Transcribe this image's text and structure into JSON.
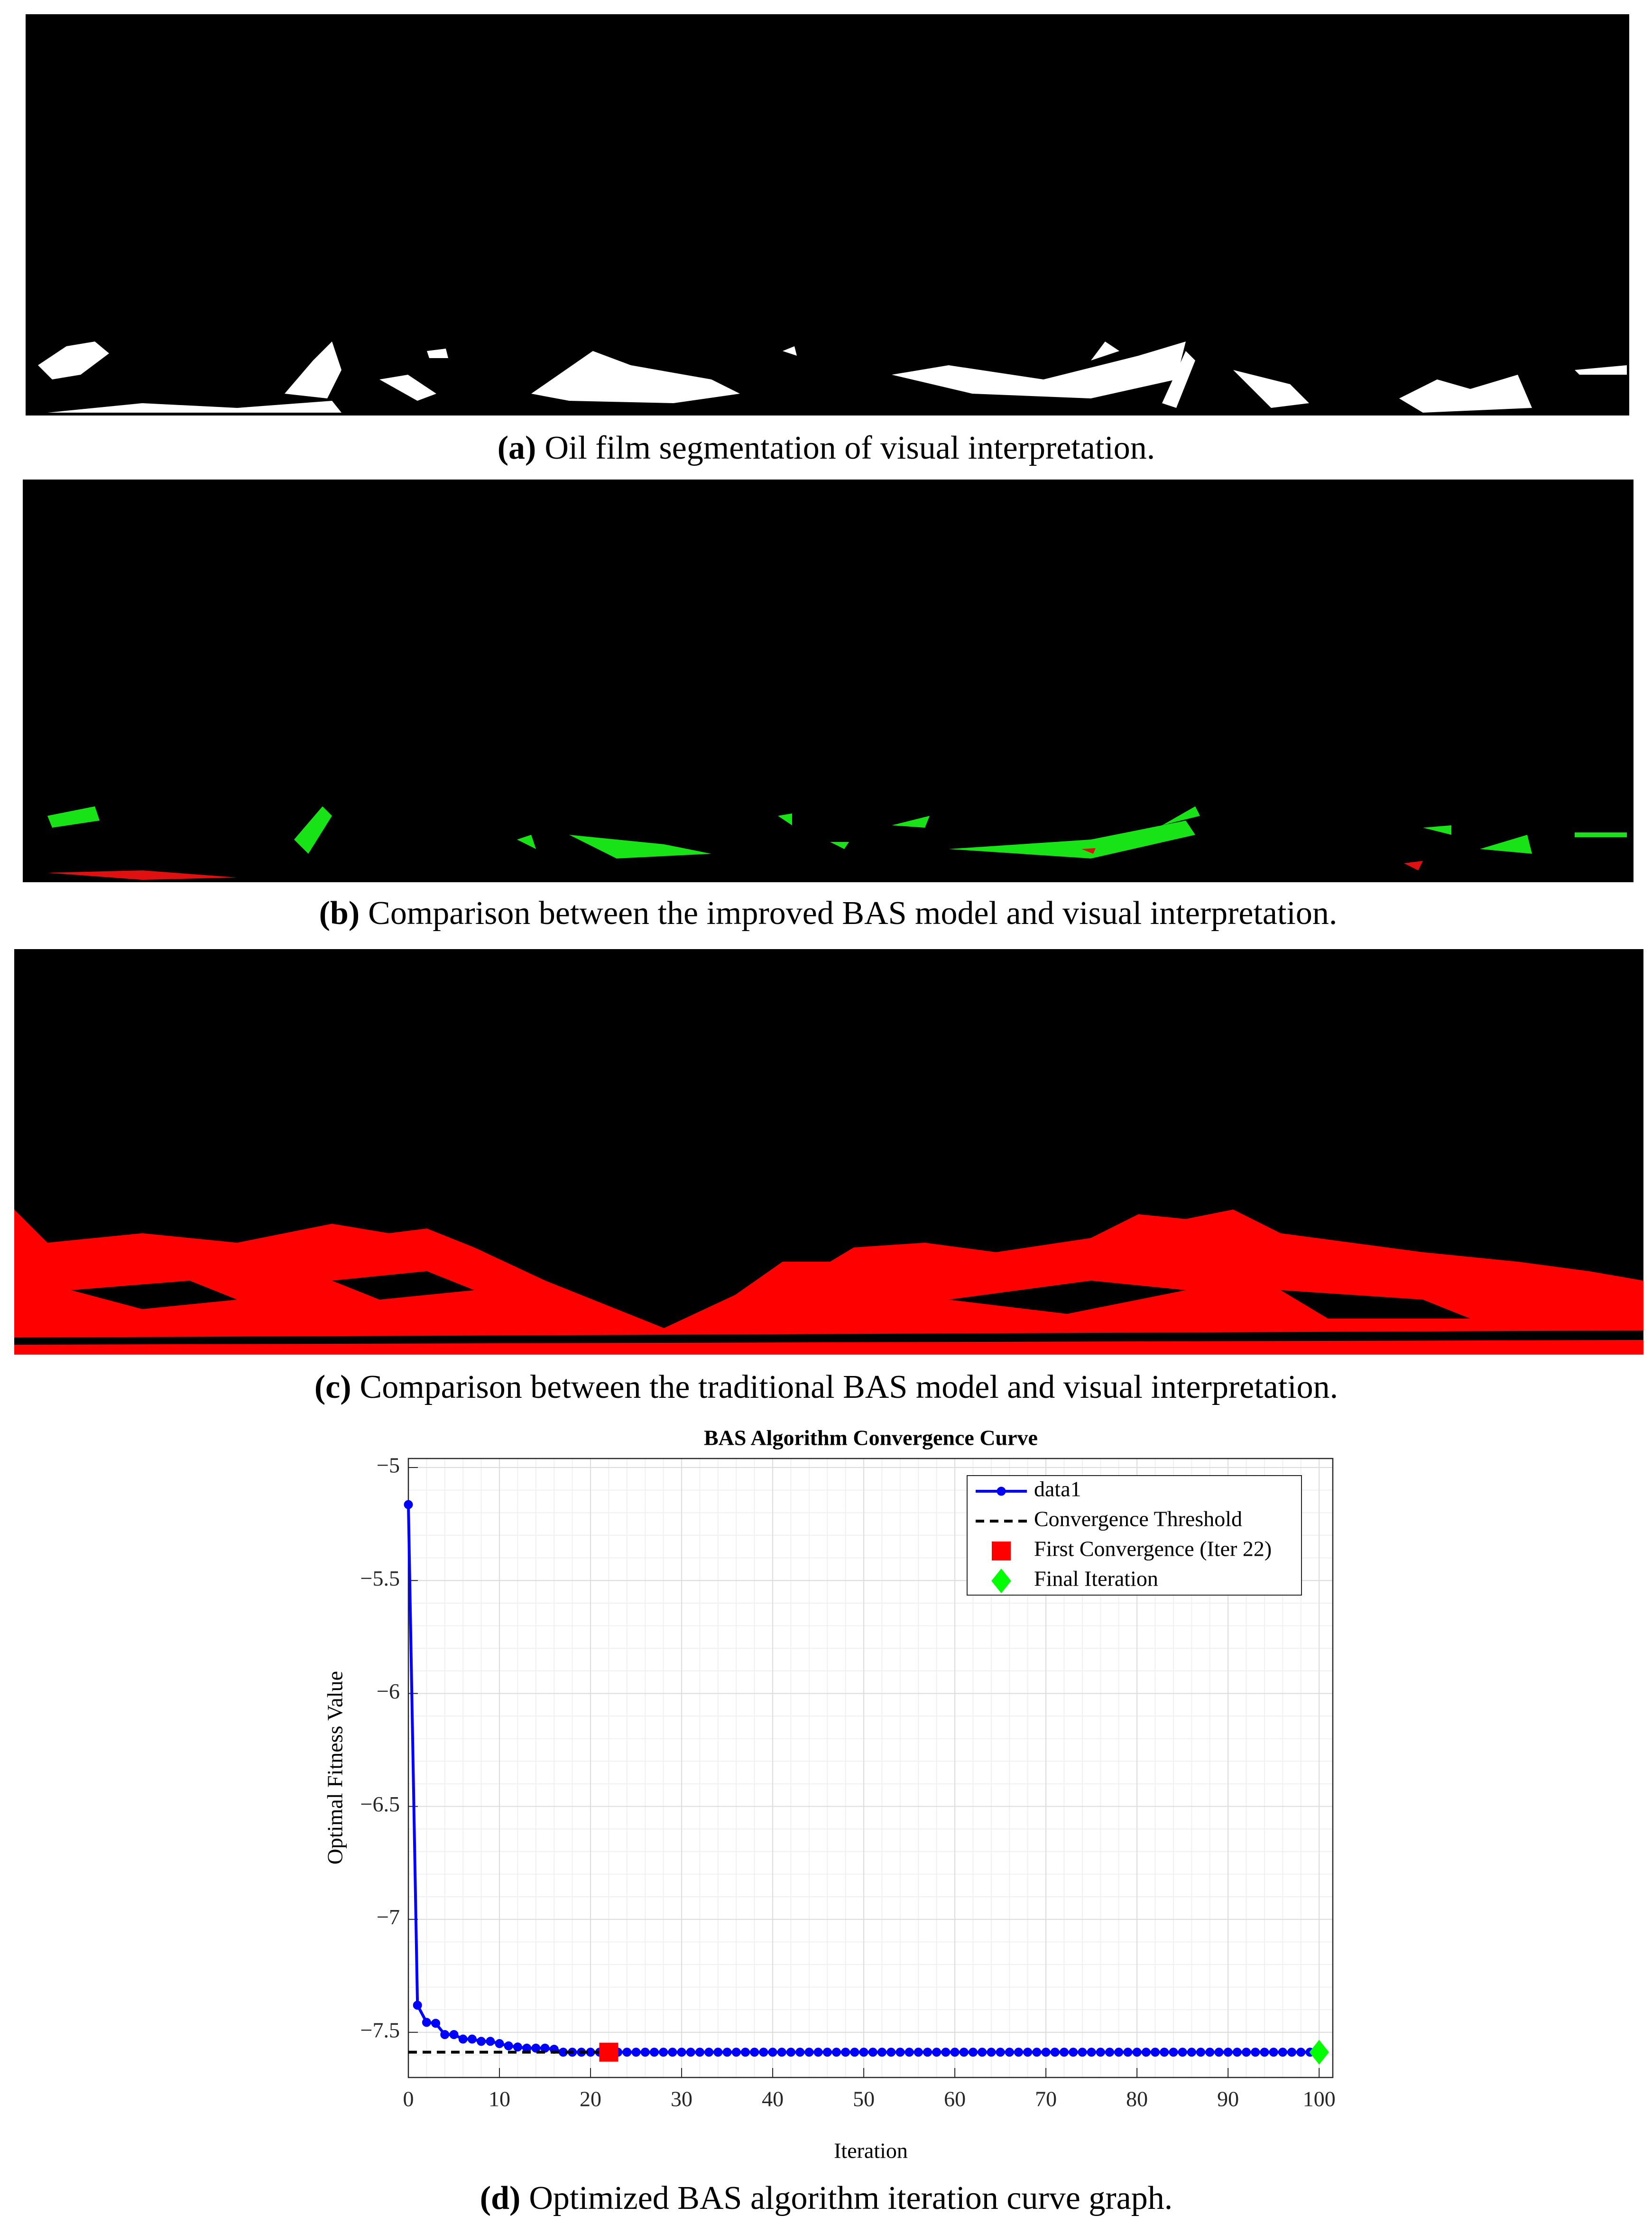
{
  "panels": [
    {
      "label": "(a)",
      "caption": "Oil film segmentation of visual interpretation."
    },
    {
      "label": "(b)",
      "caption": "Comparison between the improved BAS model and visual interpretation."
    },
    {
      "label": "(c)",
      "caption": "Comparison between the traditional BAS model and visual interpretation."
    },
    {
      "label": "(d)",
      "caption": "Optimized BAS algorithm iteration curve graph."
    }
  ],
  "chart_data": {
    "type": "line",
    "title": "BAS Algorithm Convergence Curve",
    "x_label": "Iteration",
    "y_label": "Optimal Fitness Value",
    "xlim": [
      0,
      101.5
    ],
    "ylim": [
      -7.7,
      -4.96
    ],
    "xticks": [
      0,
      10,
      20,
      30,
      40,
      50,
      60,
      70,
      80,
      90,
      100
    ],
    "yticks": [
      {
        "value": -7.5,
        "label": "−7.5"
      },
      {
        "value": -7,
        "label": "−7"
      },
      {
        "value": -6.5,
        "label": "−6.5"
      },
      {
        "value": -6,
        "label": "−6"
      },
      {
        "value": -5.5,
        "label": "−5.5"
      },
      {
        "value": -5,
        "label": "−5"
      }
    ],
    "grid": true,
    "minor_grid": true,
    "legend": "upper right",
    "series": [
      {
        "name": "data1",
        "color": "#0000ff",
        "line": "solid",
        "marker": "o",
        "x": [
          0,
          1,
          2,
          3,
          4,
          5,
          6,
          7,
          8,
          9,
          10,
          11,
          12,
          13,
          14,
          15,
          16,
          17,
          18,
          19,
          20,
          21,
          22,
          23,
          24,
          25,
          26,
          27,
          28,
          29,
          30,
          31,
          32,
          33,
          34,
          35,
          36,
          37,
          38,
          39,
          40,
          41,
          42,
          43,
          44,
          45,
          46,
          47,
          48,
          49,
          50,
          51,
          52,
          53,
          54,
          55,
          56,
          57,
          58,
          59,
          60,
          61,
          62,
          63,
          64,
          65,
          66,
          67,
          68,
          69,
          70,
          71,
          72,
          73,
          74,
          75,
          76,
          77,
          78,
          79,
          80,
          81,
          82,
          83,
          84,
          85,
          86,
          87,
          88,
          89,
          90,
          91,
          92,
          93,
          94,
          95,
          96,
          97,
          98,
          99,
          100
        ],
        "values": [
          -5.164,
          -7.38,
          -7.456,
          -7.46,
          -7.51,
          -7.51,
          -7.53,
          -7.53,
          -7.54,
          -7.54,
          -7.55,
          -7.56,
          -7.565,
          -7.57,
          -7.57,
          -7.57,
          -7.575,
          -7.588,
          -7.588,
          -7.588,
          -7.588,
          -7.588,
          -7.588,
          -7.588,
          -7.588,
          -7.588,
          -7.588,
          -7.588,
          -7.588,
          -7.588,
          -7.588,
          -7.588,
          -7.588,
          -7.588,
          -7.588,
          -7.588,
          -7.588,
          -7.588,
          -7.588,
          -7.588,
          -7.588,
          -7.588,
          -7.588,
          -7.588,
          -7.588,
          -7.588,
          -7.588,
          -7.588,
          -7.588,
          -7.588,
          -7.588,
          -7.588,
          -7.588,
          -7.588,
          -7.588,
          -7.588,
          -7.588,
          -7.588,
          -7.588,
          -7.588,
          -7.588,
          -7.588,
          -7.588,
          -7.588,
          -7.588,
          -7.588,
          -7.588,
          -7.588,
          -7.588,
          -7.588,
          -7.588,
          -7.588,
          -7.588,
          -7.588,
          -7.588,
          -7.588,
          -7.588,
          -7.588,
          -7.588,
          -7.588,
          -7.588,
          -7.588,
          -7.588,
          -7.588,
          -7.588,
          -7.588,
          -7.588,
          -7.588,
          -7.588,
          -7.588,
          -7.588,
          -7.588,
          -7.588,
          -7.588,
          -7.588,
          -7.588,
          -7.588,
          -7.588,
          -7.588,
          -7.588,
          -7.588
        ]
      },
      {
        "name": "Convergence Threshold",
        "color": "#000000",
        "line": "dashed",
        "marker": "none",
        "x": [
          0,
          22
        ],
        "values": [
          -7.588,
          -7.588
        ]
      },
      {
        "name": "First Convergence (Iter 22)",
        "color": "#ff0000",
        "line": "none",
        "marker": "s",
        "x": [
          22
        ],
        "values": [
          -7.588
        ]
      },
      {
        "name": "Final Iteration",
        "color": "#00ff00",
        "line": "none",
        "marker": "d",
        "x": [
          100
        ],
        "values": [
          -7.588
        ]
      }
    ]
  }
}
